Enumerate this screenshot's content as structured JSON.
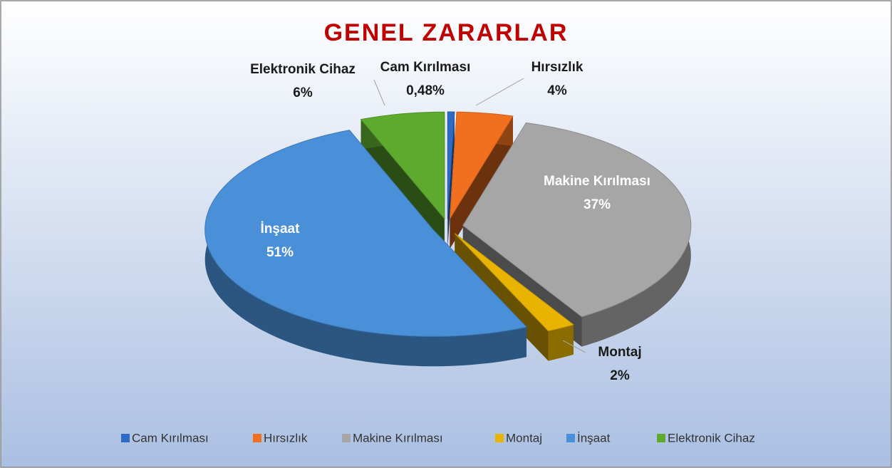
{
  "chart_data": {
    "type": "pie3d",
    "title": "GENEL ZARARLAR",
    "categories": [
      "Cam Kırılması",
      "Hırsızlık",
      "Makine Kırılması",
      "Montaj",
      "İnşaat",
      "Elektronik Cihaz"
    ],
    "values": [
      0.48,
      4,
      37,
      2,
      51,
      6
    ],
    "value_labels": [
      "0,48%",
      "4%",
      "37%",
      "2%",
      "51%",
      "6%"
    ],
    "colors": [
      "#2e6bc4",
      "#f07020",
      "#a6a6a6",
      "#e8b400",
      "#4a90d9",
      "#5eaa2e"
    ],
    "legend": "bottom"
  }
}
